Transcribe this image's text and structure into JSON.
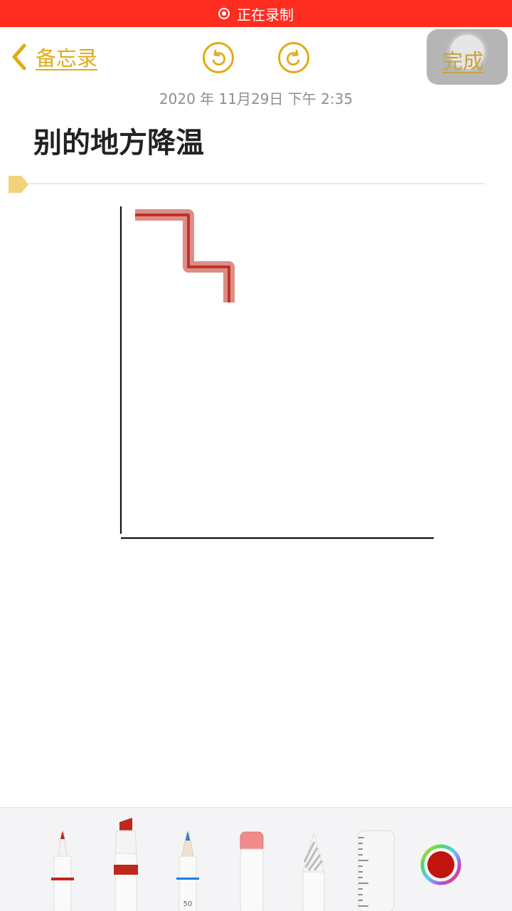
{
  "status_bar": {
    "recording_label": "正在录制"
  },
  "nav": {
    "back_label": "备忘录",
    "done_label": "完成"
  },
  "note": {
    "date": "2020 年 11月29日 下午 2:35",
    "title": "别的地方降温"
  },
  "toolbar": {
    "tools": [
      "pen",
      "marker",
      "pencil",
      "eraser",
      "lasso",
      "ruler",
      "color-picker"
    ],
    "pencil_size_label": "50",
    "selected_color": "#c0140c"
  },
  "colors": {
    "accent": "#e0ab16",
    "recording": "#ff2d20",
    "ink_red": "#c0281c"
  }
}
